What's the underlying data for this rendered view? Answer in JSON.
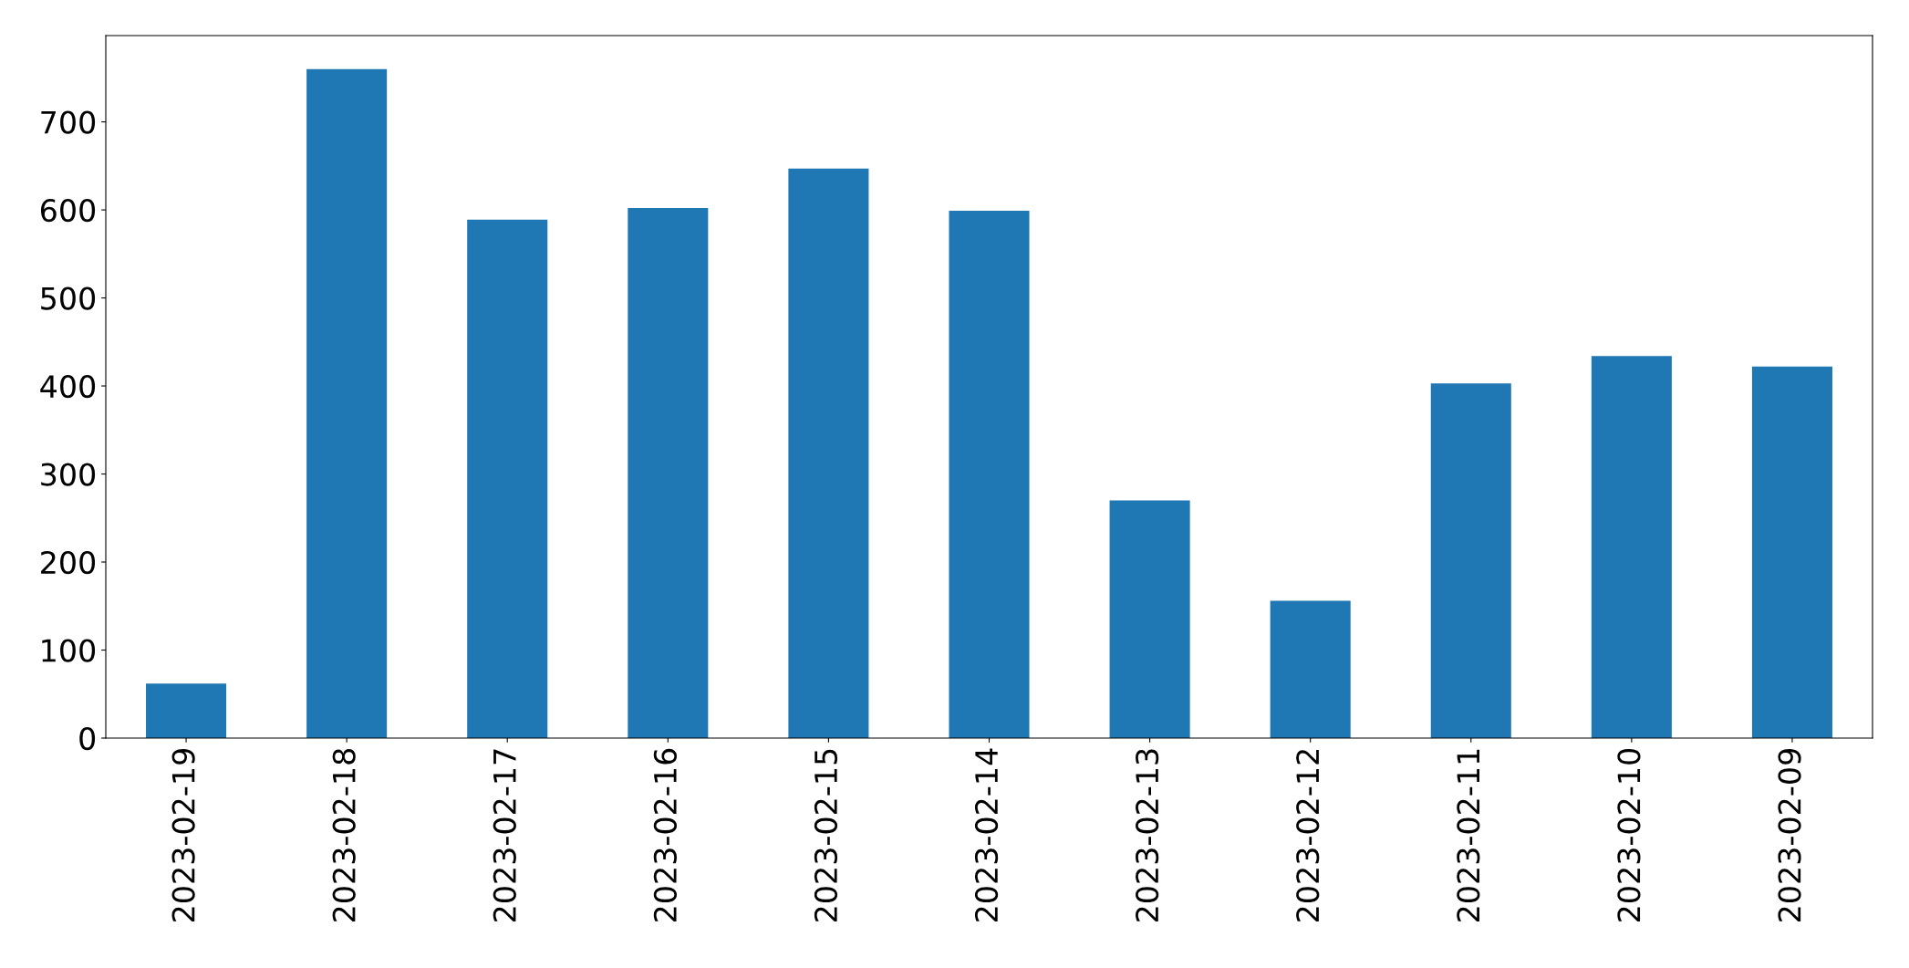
{
  "chart_data": {
    "type": "bar",
    "categories": [
      "2023-02-19",
      "2023-02-18",
      "2023-02-17",
      "2023-02-16",
      "2023-02-15",
      "2023-02-14",
      "2023-02-13",
      "2023-02-12",
      "2023-02-11",
      "2023-02-10",
      "2023-02-09"
    ],
    "values": [
      62,
      760,
      589,
      602,
      647,
      599,
      270,
      156,
      403,
      434,
      422
    ],
    "color": "#1f77b4",
    "ylim": [
      0,
      798
    ],
    "yticks": [
      0,
      100,
      200,
      300,
      400,
      500,
      600,
      700
    ],
    "grid": false,
    "legend": false
  }
}
